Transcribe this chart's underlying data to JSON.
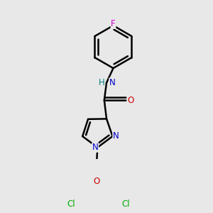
{
  "background_color": "#e8e8e8",
  "bond_color": "#000000",
  "bond_width": 1.8,
  "atom_colors": {
    "N": "#0000cc",
    "O": "#cc0000",
    "Cl": "#00aa00",
    "F": "#cc00cc",
    "H": "#008080",
    "C": "#000000"
  },
  "font_size": 8.5,
  "figsize": [
    3.0,
    3.0
  ],
  "dpi": 100
}
